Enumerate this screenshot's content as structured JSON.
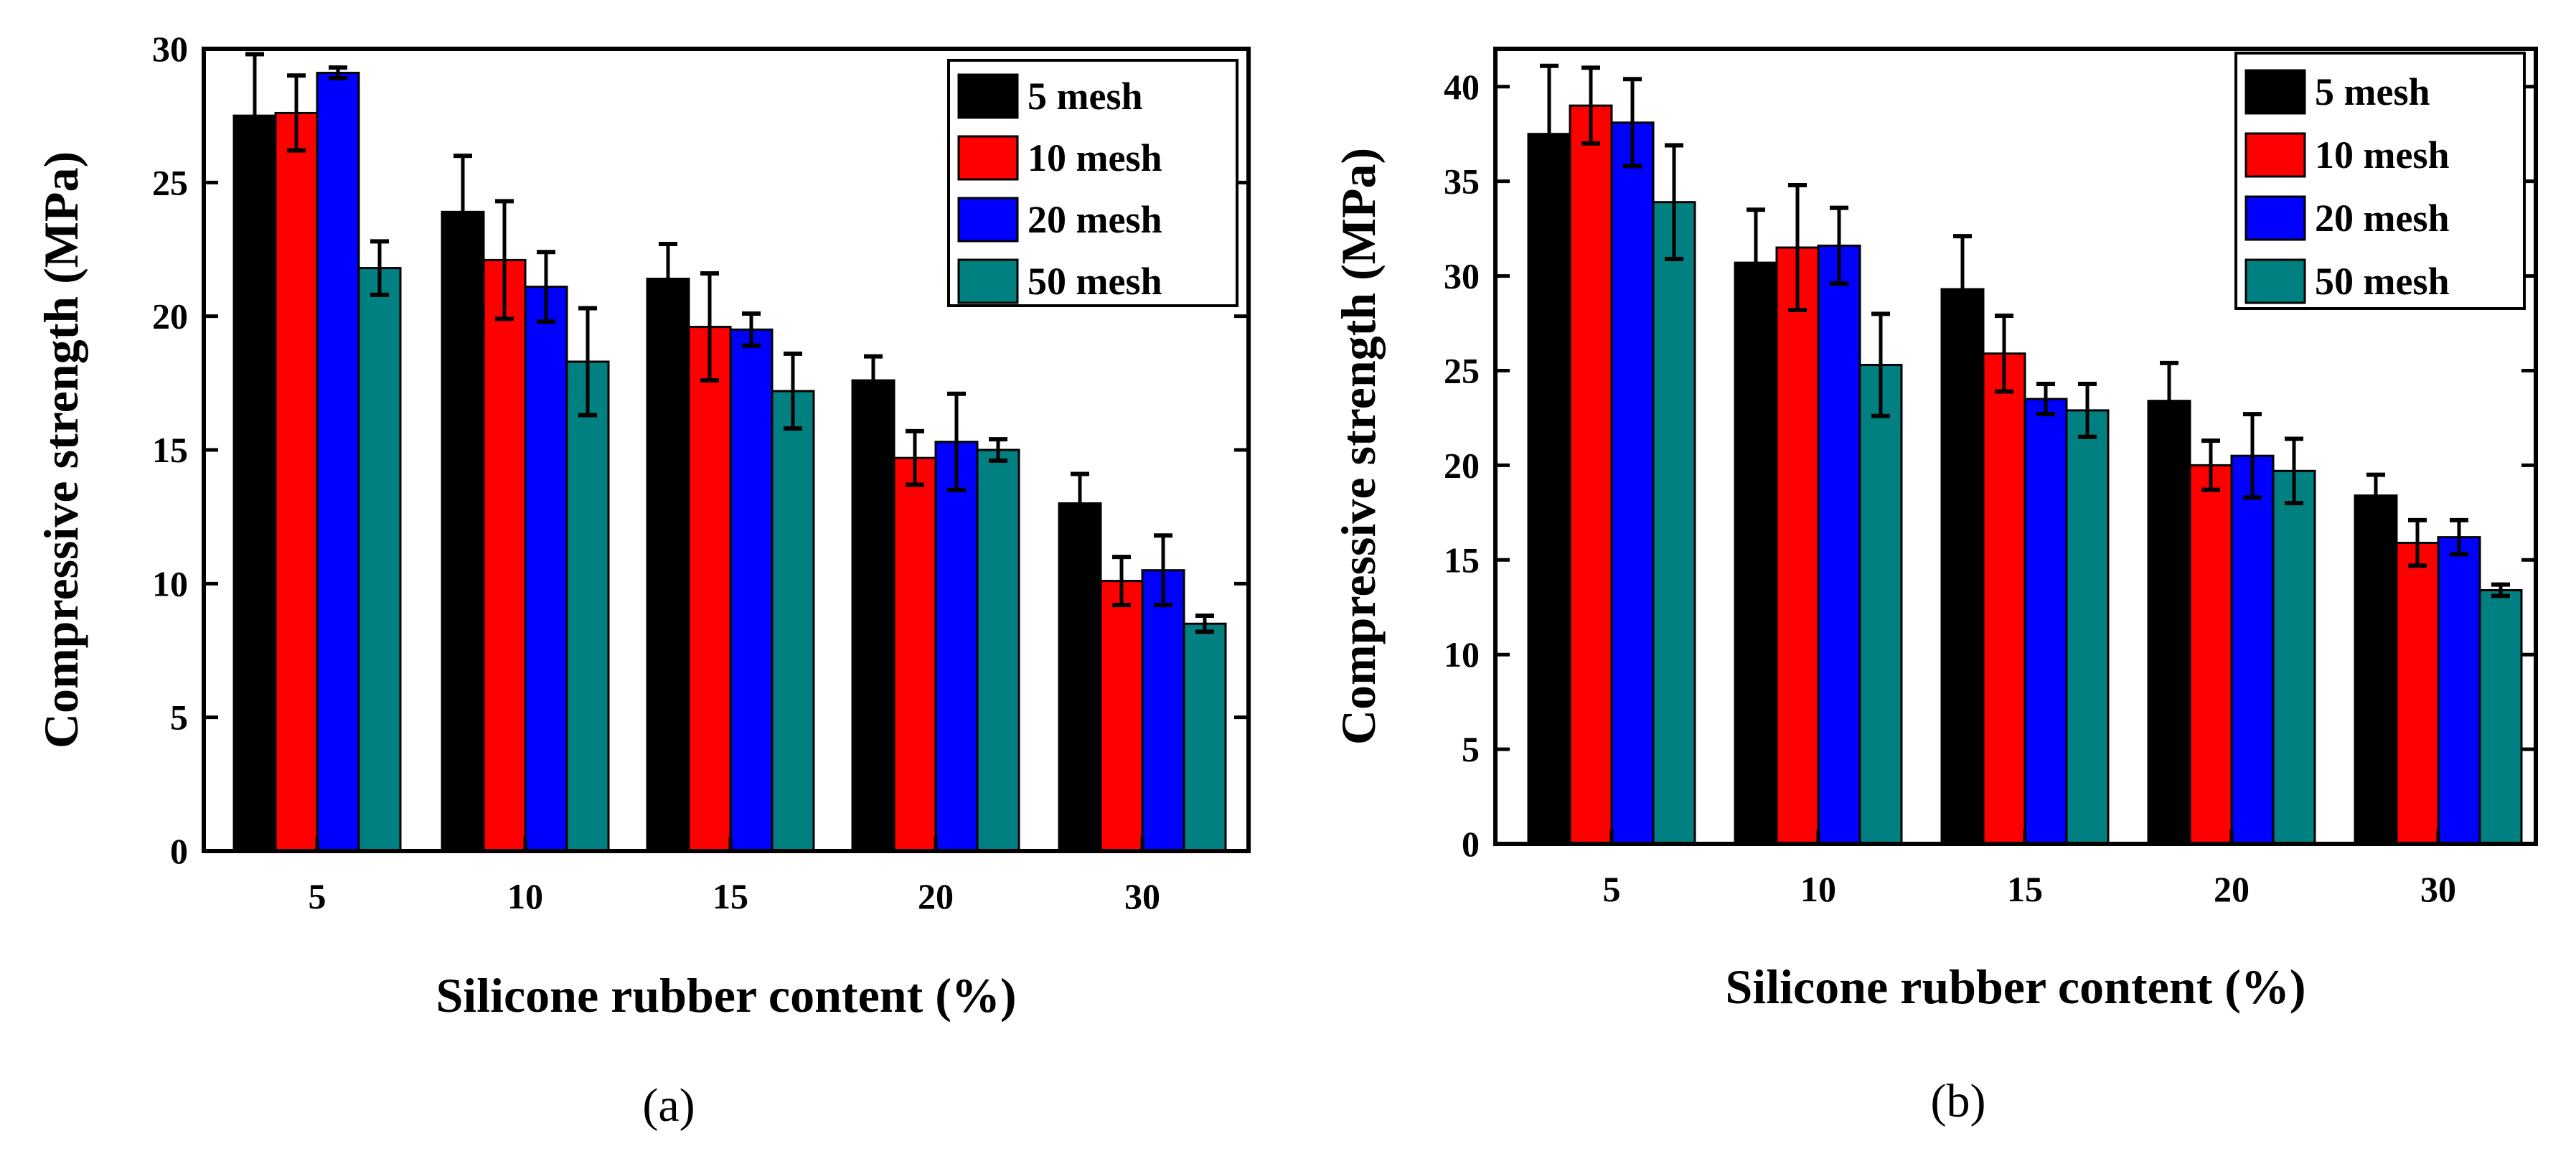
{
  "chart_data": [
    {
      "type": "bar",
      "panel_label": "(a)",
      "categories": [
        "5",
        "10",
        "15",
        "20",
        "30"
      ],
      "xlabel": "Silicone rubber content (%)",
      "ylabel": "Compressive strength (MPa)",
      "ylim": [
        0,
        30
      ],
      "yticks": [
        "0",
        "5",
        "10",
        "15",
        "20",
        "25",
        "30"
      ],
      "legend_position": "top-right",
      "grid": false,
      "series": [
        {
          "name": "5 mesh",
          "color": "#000000",
          "values": [
            27.5,
            23.9,
            21.4,
            17.6,
            13.0
          ],
          "errors": [
            2.3,
            2.1,
            1.3,
            0.9,
            1.1
          ]
        },
        {
          "name": "10 mesh",
          "color": "#ff0000",
          "values": [
            27.6,
            22.1,
            19.6,
            14.7,
            10.1
          ],
          "errors": [
            1.4,
            2.2,
            2.0,
            1.0,
            0.9
          ]
        },
        {
          "name": "20 mesh",
          "color": "#0000ff",
          "values": [
            29.1,
            21.1,
            19.5,
            15.3,
            10.5
          ],
          "errors": [
            0.2,
            1.3,
            0.6,
            1.8,
            1.3
          ]
        },
        {
          "name": "50 mesh",
          "color": "#008080",
          "values": [
            21.8,
            18.3,
            17.2,
            15.0,
            8.5
          ],
          "errors": [
            1.0,
            2.0,
            1.4,
            0.4,
            0.3
          ]
        }
      ]
    },
    {
      "type": "bar",
      "panel_label": "(b)",
      "categories": [
        "5",
        "10",
        "15",
        "20",
        "30"
      ],
      "xlabel": "Silicone rubber content (%)",
      "ylabel": "Compressive strength (MPa)",
      "ylim": [
        0,
        42
      ],
      "yticks": [
        "0",
        "5",
        "10",
        "15",
        "20",
        "25",
        "30",
        "35",
        "40"
      ],
      "legend_position": "top-right",
      "grid": false,
      "series": [
        {
          "name": "5 mesh",
          "color": "#000000",
          "values": [
            37.5,
            30.7,
            29.3,
            23.4,
            18.4
          ],
          "errors": [
            3.6,
            2.8,
            2.8,
            2.0,
            1.1
          ]
        },
        {
          "name": "10 mesh",
          "color": "#ff0000",
          "values": [
            39.0,
            31.5,
            25.9,
            20.0,
            15.9
          ],
          "errors": [
            2.0,
            3.3,
            2.0,
            1.3,
            1.2
          ]
        },
        {
          "name": "20 mesh",
          "color": "#0000ff",
          "values": [
            38.1,
            31.6,
            23.5,
            20.5,
            16.2
          ],
          "errors": [
            2.3,
            2.0,
            0.8,
            2.2,
            0.9
          ]
        },
        {
          "name": "50 mesh",
          "color": "#008080",
          "values": [
            33.9,
            25.3,
            22.9,
            19.7,
            13.4
          ],
          "errors": [
            3.0,
            2.7,
            1.4,
            1.7,
            0.3
          ]
        }
      ]
    }
  ]
}
